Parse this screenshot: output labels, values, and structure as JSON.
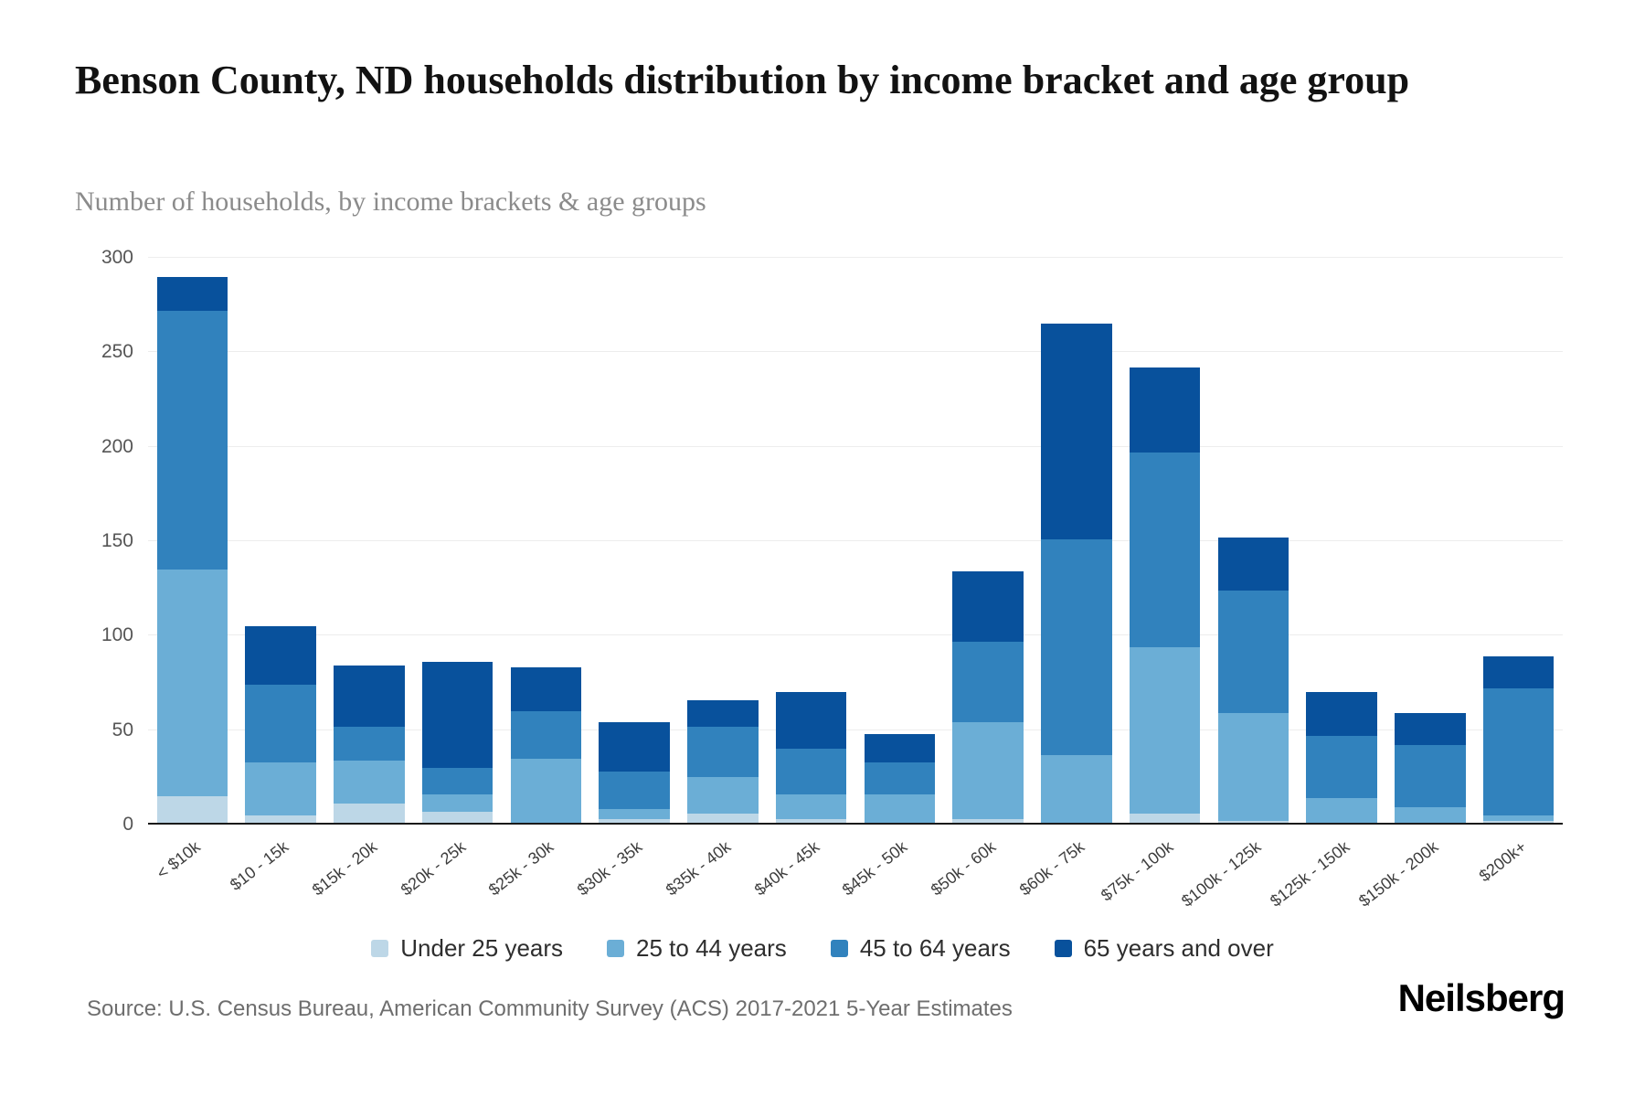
{
  "header": {
    "title": "Benson County, ND households distribution by income bracket and age group",
    "subtitle": "Number of households, by income brackets & age groups"
  },
  "footer": {
    "source": "Source: U.S. Census Bureau, American Community Survey (ACS) 2017-2021 5-Year Estimates",
    "brand": "Neilsberg"
  },
  "colors": {
    "under_25": "#bdd7e7",
    "age_25_44": "#6baed6",
    "age_45_64": "#3182bd",
    "age_65_over": "#08519c",
    "gridline": "#ededed",
    "axis_line": "#1a1a1a"
  },
  "chart_data": {
    "type": "bar",
    "stacked": true,
    "title": "Benson County, ND households distribution by income bracket and age group",
    "subtitle": "Number of households, by income brackets & age groups",
    "xlabel": "",
    "ylabel": "Number of households",
    "ylim": [
      0,
      300
    ],
    "yticks": [
      0,
      50,
      100,
      150,
      200,
      250,
      300
    ],
    "grid": true,
    "legend_position": "bottom",
    "categories": [
      "< $10k",
      "$10 - 15k",
      "$15k - 20k",
      "$20k - 25k",
      "$25k - 30k",
      "$30k - 35k",
      "$35k - 40k",
      "$40k - 45k",
      "$45k - 50k",
      "$50k - 60k",
      "$60k - 75k",
      "$75k - 100k",
      "$100k - 125k",
      "$125k - 150k",
      "$150k - 200k",
      "$200k+"
    ],
    "series": [
      {
        "name": "Under 25 years",
        "color": "#bdd7e7",
        "values": [
          15,
          5,
          11,
          7,
          0,
          3,
          6,
          3,
          0,
          3,
          0,
          6,
          2,
          0,
          0,
          2
        ]
      },
      {
        "name": "25 to 44 years",
        "color": "#6baed6",
        "values": [
          120,
          28,
          23,
          9,
          35,
          5,
          19,
          13,
          16,
          51,
          37,
          88,
          57,
          14,
          9,
          3
        ]
      },
      {
        "name": "45 to 64 years",
        "color": "#3182bd",
        "values": [
          137,
          41,
          18,
          14,
          25,
          20,
          27,
          24,
          17,
          43,
          114,
          103,
          65,
          33,
          33,
          67
        ]
      },
      {
        "name": "65 years and over",
        "color": "#08519c",
        "values": [
          18,
          31,
          32,
          56,
          23,
          26,
          14,
          30,
          15,
          37,
          114,
          45,
          28,
          23,
          17,
          17
        ]
      }
    ]
  }
}
